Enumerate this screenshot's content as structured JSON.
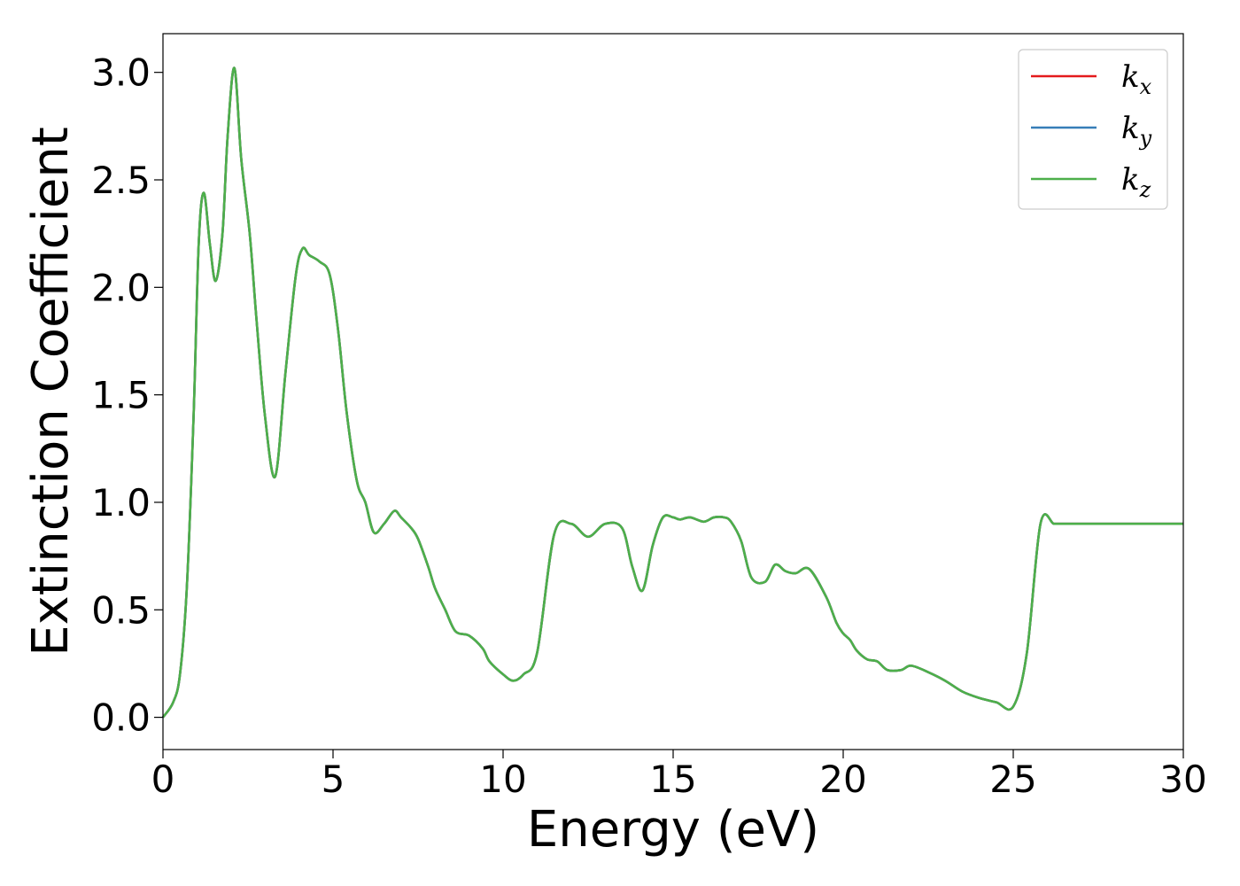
{
  "chart_data": {
    "type": "line",
    "title": "",
    "xlabel": "Energy (eV)",
    "ylabel": "Extinction Coefficient",
    "xlim": [
      0,
      30
    ],
    "ylim": [
      -0.15,
      3.18
    ],
    "xticks": [
      0,
      5,
      10,
      15,
      20,
      25,
      30
    ],
    "yticks": [
      0.0,
      0.5,
      1.0,
      1.5,
      2.0,
      2.5,
      3.0
    ],
    "xtick_labels": [
      "0",
      "5",
      "10",
      "15",
      "20",
      "25",
      "30"
    ],
    "ytick_labels": [
      "0.0",
      "0.5",
      "1.0",
      "1.5",
      "2.0",
      "2.5",
      "3.0"
    ],
    "grid": false,
    "legend_position": "top-right",
    "series": [
      {
        "name": "k_x",
        "label_base": "k",
        "label_sub": "x",
        "color": "#e41a1c"
      },
      {
        "name": "k_y",
        "label_base": "k",
        "label_sub": "y",
        "color": "#377eb8"
      },
      {
        "name": "k_z",
        "label_base": "k",
        "label_sub": "z",
        "color": "#4daf4a"
      }
    ],
    "x": [
      0,
      0.3,
      0.5,
      0.7,
      0.9,
      1.05,
      1.2,
      1.38,
      1.55,
      1.75,
      1.9,
      2.1,
      2.3,
      2.55,
      2.75,
      3.0,
      3.3,
      3.6,
      3.9,
      4.1,
      4.3,
      4.6,
      4.9,
      5.15,
      5.4,
      5.7,
      5.95,
      6.2,
      6.5,
      6.8,
      7.0,
      7.3,
      7.5,
      7.8,
      8.0,
      8.3,
      8.6,
      9.0,
      9.4,
      9.6,
      10.0,
      10.3,
      10.6,
      11.0,
      11.5,
      12.0,
      12.5,
      13.0,
      13.5,
      13.8,
      14.1,
      14.4,
      14.7,
      15.0,
      15.2,
      15.5,
      15.9,
      16.2,
      16.5,
      16.7,
      17.0,
      17.3,
      17.7,
      18.0,
      18.3,
      18.6,
      19.0,
      19.5,
      19.8,
      20.0,
      20.2,
      20.4,
      20.7,
      21.0,
      21.3,
      21.7,
      22.0,
      22.5,
      23.0,
      23.5,
      24.0,
      24.5,
      25.0,
      25.4,
      25.8,
      26.2,
      26.5,
      26.8,
      27.0,
      27.5,
      28.0,
      28.5,
      29.0,
      29.5,
      30.0
    ],
    "y": [
      0.0,
      0.07,
      0.2,
      0.6,
      1.4,
      2.2,
      2.44,
      2.2,
      2.03,
      2.25,
      2.7,
      3.02,
      2.6,
      2.25,
      1.85,
      1.4,
      1.12,
      1.6,
      2.05,
      2.18,
      2.15,
      2.12,
      2.06,
      1.8,
      1.42,
      1.1,
      1.0,
      0.86,
      0.9,
      0.96,
      0.93,
      0.88,
      0.83,
      0.7,
      0.6,
      0.5,
      0.4,
      0.38,
      0.32,
      0.26,
      0.2,
      0.17,
      0.2,
      0.3,
      0.85,
      0.9,
      0.84,
      0.9,
      0.88,
      0.7,
      0.59,
      0.8,
      0.93,
      0.93,
      0.92,
      0.93,
      0.91,
      0.93,
      0.93,
      0.91,
      0.82,
      0.65,
      0.63,
      0.71,
      0.68,
      0.67,
      0.69,
      0.56,
      0.44,
      0.39,
      0.36,
      0.31,
      0.27,
      0.26,
      0.22,
      0.22,
      0.24,
      0.21,
      0.17,
      0.12,
      0.09,
      0.07,
      0.05,
      0.3,
      0.9,
      0.9,
      0.9,
      0.9,
      0.9,
      0.9,
      0.9,
      0.9,
      0.9,
      0.9,
      0.9
    ]
  }
}
